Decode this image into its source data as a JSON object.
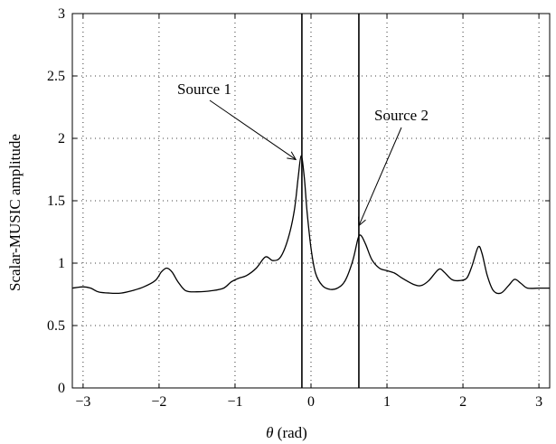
{
  "chart_data": {
    "type": "line",
    "title": "",
    "xlabel": {
      "symbol": "θ",
      "unit": " (rad)"
    },
    "ylabel": "Scalar-MUSIC amplitude",
    "xlim": [
      -3.1416,
      3.1416
    ],
    "ylim": [
      0,
      3
    ],
    "grid": true,
    "x_ticks": [
      -3,
      -2,
      -1,
      0,
      1,
      2,
      3
    ],
    "x_tick_labels": [
      "−3",
      "−2",
      "−1",
      "0",
      "1",
      "2",
      "3"
    ],
    "y_ticks": [
      0,
      0.5,
      1,
      1.5,
      2,
      2.5,
      3
    ],
    "y_tick_labels": [
      "0",
      "0.5",
      "1",
      "1.5",
      "2",
      "2.5",
      "3"
    ],
    "series": [
      {
        "values": [
          [
            -3.14,
            0.8
          ],
          [
            -3.0,
            0.81
          ],
          [
            -2.9,
            0.8
          ],
          [
            -2.8,
            0.77
          ],
          [
            -2.65,
            0.76
          ],
          [
            -2.5,
            0.76
          ],
          [
            -2.35,
            0.78
          ],
          [
            -2.2,
            0.81
          ],
          [
            -2.05,
            0.86
          ],
          [
            -1.97,
            0.93
          ],
          [
            -1.9,
            0.96
          ],
          [
            -1.83,
            0.93
          ],
          [
            -1.75,
            0.85
          ],
          [
            -1.65,
            0.78
          ],
          [
            -1.5,
            0.77
          ],
          [
            -1.3,
            0.78
          ],
          [
            -1.15,
            0.8
          ],
          [
            -1.05,
            0.85
          ],
          [
            -0.95,
            0.88
          ],
          [
            -0.85,
            0.9
          ],
          [
            -0.72,
            0.96
          ],
          [
            -0.6,
            1.05
          ],
          [
            -0.5,
            1.02
          ],
          [
            -0.4,
            1.05
          ],
          [
            -0.3,
            1.2
          ],
          [
            -0.22,
            1.42
          ],
          [
            -0.17,
            1.68
          ],
          [
            -0.13,
            1.86
          ],
          [
            -0.09,
            1.7
          ],
          [
            -0.05,
            1.4
          ],
          [
            0.0,
            1.12
          ],
          [
            0.06,
            0.92
          ],
          [
            0.15,
            0.82
          ],
          [
            0.25,
            0.79
          ],
          [
            0.35,
            0.8
          ],
          [
            0.45,
            0.86
          ],
          [
            0.55,
            1.02
          ],
          [
            0.62,
            1.2
          ],
          [
            0.66,
            1.22
          ],
          [
            0.72,
            1.15
          ],
          [
            0.8,
            1.03
          ],
          [
            0.9,
            0.96
          ],
          [
            1.0,
            0.94
          ],
          [
            1.1,
            0.92
          ],
          [
            1.2,
            0.88
          ],
          [
            1.35,
            0.83
          ],
          [
            1.45,
            0.82
          ],
          [
            1.55,
            0.86
          ],
          [
            1.68,
            0.95
          ],
          [
            1.75,
            0.93
          ],
          [
            1.85,
            0.87
          ],
          [
            1.95,
            0.86
          ],
          [
            2.05,
            0.88
          ],
          [
            2.12,
            0.98
          ],
          [
            2.2,
            1.13
          ],
          [
            2.25,
            1.08
          ],
          [
            2.32,
            0.9
          ],
          [
            2.4,
            0.78
          ],
          [
            2.5,
            0.76
          ],
          [
            2.6,
            0.82
          ],
          [
            2.68,
            0.87
          ],
          [
            2.76,
            0.84
          ],
          [
            2.85,
            0.8
          ],
          [
            3.0,
            0.8
          ],
          [
            3.14,
            0.8
          ]
        ]
      }
    ],
    "source_lines": [
      -0.12,
      0.63
    ],
    "annotations": [
      {
        "text": "Source 1",
        "target": [
          -0.2,
          1.83
        ]
      },
      {
        "text": "Source 2",
        "target": [
          0.63,
          1.3
        ]
      }
    ]
  }
}
